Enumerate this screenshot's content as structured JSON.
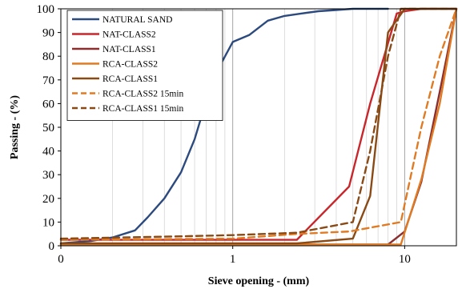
{
  "chart_data": {
    "type": "line",
    "x_scale": "log",
    "xlim": [
      0.1,
      20
    ],
    "ylim": [
      0,
      100
    ],
    "xlabel": "Sieve opening - (mm)",
    "ylabel": "Passing - (%)",
    "x_ticks": [
      {
        "value": 0.1,
        "label": "0"
      },
      {
        "value": 1,
        "label": "1"
      },
      {
        "value": 10,
        "label": "10"
      }
    ],
    "y_ticks": [
      0,
      10,
      20,
      30,
      40,
      50,
      60,
      70,
      80,
      90,
      100
    ],
    "grid": "vertical minor lines on log x axis",
    "legend_position": "top-left",
    "series": [
      {
        "name": "NATURAL SAND",
        "color": "#2c4a7e",
        "dash": "solid",
        "points": [
          [
            0.1,
            1
          ],
          [
            0.15,
            2
          ],
          [
            0.2,
            3.5
          ],
          [
            0.27,
            6.5
          ],
          [
            0.32,
            12
          ],
          [
            0.4,
            20
          ],
          [
            0.5,
            31
          ],
          [
            0.6,
            45
          ],
          [
            0.7,
            61
          ],
          [
            0.8,
            73
          ],
          [
            1.0,
            86
          ],
          [
            1.25,
            89
          ],
          [
            1.6,
            95
          ],
          [
            2.0,
            97
          ],
          [
            2.5,
            98
          ],
          [
            3.15,
            99
          ],
          [
            4.0,
            99.5
          ],
          [
            5.0,
            100
          ],
          [
            8.0,
            100
          ]
        ]
      },
      {
        "name": "NAT-CLASS2",
        "color": "#c8262b",
        "dash": "solid",
        "points": [
          [
            0.1,
            2.5
          ],
          [
            1.0,
            2.5
          ],
          [
            2.36,
            2.5
          ],
          [
            4.75,
            25
          ],
          [
            6.3,
            60
          ],
          [
            9.0,
            98
          ],
          [
            10.0,
            99
          ],
          [
            12.5,
            100
          ],
          [
            20,
            100
          ]
        ]
      },
      {
        "name": "NAT-CLASS1",
        "color": "#8b2e2e",
        "dash": "solid",
        "points": [
          [
            0.1,
            0.5
          ],
          [
            4.75,
            0.5
          ],
          [
            8.0,
            0.5
          ],
          [
            10.0,
            6
          ],
          [
            12.5,
            27
          ],
          [
            16.0,
            65
          ],
          [
            20,
            100
          ]
        ]
      },
      {
        "name": "RCA-CLASS2",
        "color": "#e07b24",
        "dash": "solid",
        "points": [
          [
            0.1,
            0.5
          ],
          [
            4.75,
            0.5
          ],
          [
            9.5,
            0.5
          ],
          [
            12.5,
            28
          ],
          [
            16.0,
            60
          ],
          [
            20,
            100
          ]
        ]
      },
      {
        "name": "RCA-CLASS1",
        "color": "#8a4a16",
        "dash": "solid",
        "points": [
          [
            0.1,
            1
          ],
          [
            2.36,
            1
          ],
          [
            5.0,
            3
          ],
          [
            6.3,
            21
          ],
          [
            8.0,
            90
          ],
          [
            10.0,
            100
          ],
          [
            20,
            100
          ]
        ]
      },
      {
        "name": "RCA-CLASS2 15min",
        "color": "#e07b24",
        "dash": "dashed",
        "points": [
          [
            0.1,
            2.5
          ],
          [
            1.0,
            3
          ],
          [
            2.36,
            5
          ],
          [
            4.75,
            6
          ],
          [
            9.5,
            10
          ],
          [
            12.5,
            50
          ],
          [
            16.0,
            80
          ],
          [
            20,
            100
          ]
        ]
      },
      {
        "name": "RCA-CLASS1 15min",
        "color": "#8a4a16",
        "dash": "dashed",
        "points": [
          [
            0.1,
            3
          ],
          [
            0.5,
            4
          ],
          [
            1.0,
            4.5
          ],
          [
            2.36,
            5.5
          ],
          [
            5.0,
            10
          ],
          [
            6.3,
            40
          ],
          [
            8.0,
            80
          ],
          [
            9.5,
            100
          ],
          [
            20,
            100
          ]
        ]
      }
    ]
  }
}
